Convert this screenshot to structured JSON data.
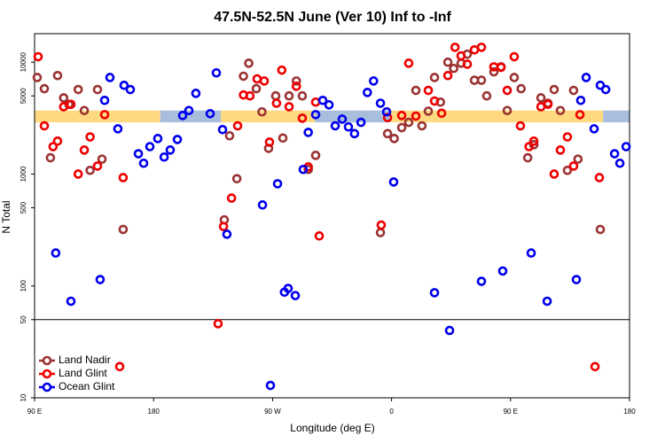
{
  "chart_data": {
    "type": "scatter",
    "title": "47.5N-52.5N June (Ver 10)   Inf to -Inf",
    "xlabel": "Longitude (deg E)",
    "ylabel": "N Total",
    "xlim": [
      90,
      540
    ],
    "ylim": [
      10,
      18000
    ],
    "log_y": true,
    "xticks": [
      {
        "value": 90,
        "label": "90 E"
      },
      {
        "value": 180,
        "label": "180"
      },
      {
        "value": 270,
        "label": "90 W"
      },
      {
        "value": 360,
        "label": "0"
      },
      {
        "value": 450,
        "label": "90 E"
      },
      {
        "value": 540,
        "label": "180"
      }
    ],
    "yticks": [
      10,
      50,
      100,
      500,
      1000,
      5000,
      10000
    ],
    "hline": 50,
    "legend": "lower left",
    "band": {
      "ylim": [
        2900,
        3700
      ],
      "segments": [
        {
          "x": [
            90,
            185
          ],
          "color": "#ffd980"
        },
        {
          "x": [
            185,
            231
          ],
          "color": "#a8bedc"
        },
        {
          "x": [
            231,
            302
          ],
          "color": "#ffd980"
        },
        {
          "x": [
            302,
            359
          ],
          "color": "#a8bedc"
        },
        {
          "x": [
            359,
            520
          ],
          "color": "#ffd980"
        },
        {
          "x": [
            520,
            540
          ],
          "color": "#a8bedc"
        }
      ]
    },
    "series": [
      {
        "name": "Land Nadir",
        "color": "#9b3333",
        "x": [
          92,
          97.4,
          102,
          107.4,
          112,
          116,
          123,
          127.6,
          132,
          137.6,
          141,
          157,
          233.5,
          237.5,
          243,
          248,
          252,
          257.7,
          262,
          267,
          272.4,
          277.8,
          282.5,
          288,
          292.5,
          297,
          302.6,
          351.6,
          357,
          362,
          367.7,
          373,
          378.4,
          383,
          387.8,
          392.5,
          397,
          402.6,
          407,
          412.6,
          417.3,
          422.7,
          428,
          432,
          437.4,
          442.8,
          447.5,
          452.8,
          458,
          463,
          467.6,
          473,
          478.3,
          483,
          487.7,
          493,
          497.7,
          501,
          517.9
        ],
        "values": [
          7300,
          5800,
          1400,
          7600,
          4800,
          4200,
          5700,
          3700,
          1080,
          5700,
          1360,
          320,
          390,
          2200,
          910,
          7500,
          9800,
          5800,
          3600,
          1700,
          5000,
          2100,
          5000,
          6800,
          5000,
          1100,
          1470,
          300,
          2300,
          2080,
          2600,
          2900,
          5600,
          2700,
          3650,
          7300,
          4400,
          10000,
          8800,
          9800,
          11800,
          6900,
          6900,
          5000,
          8200,
          9100,
          3700,
          7300,
          5800,
          1400,
          1830,
          4800,
          4300,
          5700,
          3700,
          1080,
          5600,
          1360,
          320
        ]
      },
      {
        "name": "Land Glint",
        "color": "#ee0000",
        "x": [
          92.7,
          97.4,
          104,
          107.4,
          112,
          117.5,
          123,
          127.6,
          132,
          137.6,
          143,
          157,
          154.4,
          228.8,
          232.9,
          239,
          243.6,
          248,
          252.9,
          258.3,
          263.7,
          267.7,
          273,
          277,
          282.5,
          288,
          292.5,
          297,
          302.6,
          305.3,
          352.2,
          357,
          367.7,
          373,
          378.4,
          387.8,
          392.5,
          397.9,
          402.6,
          408,
          412.6,
          417.3,
          422.7,
          428,
          437.4,
          442.8,
          447.5,
          452.8,
          457.5,
          464,
          467.6,
          473,
          478.3,
          483,
          487.7,
          493,
          497.7,
          502.5,
          517.2,
          513.9
        ],
        "values": [
          11200,
          2700,
          1760,
          1970,
          4000,
          4200,
          1000,
          1640,
          2150,
          1180,
          3400,
          930,
          19,
          46,
          340,
          610,
          2700,
          5100,
          5000,
          7100,
          6800,
          1930,
          4300,
          8500,
          4000,
          6100,
          3160,
          1160,
          4400,
          280,
          350,
          3200,
          3340,
          9800,
          3300,
          5600,
          4500,
          3500,
          7600,
          13600,
          11400,
          9600,
          12900,
          13600,
          9100,
          9000,
          5600,
          11200,
          2700,
          1760,
          1970,
          4000,
          4200,
          1000,
          1640,
          2150,
          1180,
          3400,
          930,
          19
        ]
      },
      {
        "name": "Ocean Glint",
        "color": "#0000ee",
        "x": [
          106,
          117.5,
          139.6,
          143,
          147,
          153,
          157.7,
          162.4,
          168.5,
          172.5,
          177.2,
          183.2,
          188,
          192.6,
          198,
          202,
          206.7,
          212,
          222.8,
          227.5,
          232.2,
          235.5,
          262.4,
          268.4,
          273.8,
          279,
          281.8,
          287.2,
          293.2,
          297,
          302.6,
          308,
          312.7,
          317.4,
          322.7,
          327.4,
          332,
          336.9,
          341.7,
          346.4,
          351.6,
          356.3,
          361.6,
          392.5,
          403.9,
          428,
          444.1,
          465.6,
          477.7,
          499.8,
          503.1,
          507.2,
          513.2,
          517.9,
          522,
          528.7,
          532.7,
          537.4
        ],
        "values": [
          197,
          73,
          114,
          4560,
          7300,
          2540,
          6220,
          5700,
          1520,
          1250,
          1760,
          2080,
          1420,
          1640,
          2040,
          3340,
          3700,
          5270,
          3470,
          8030,
          2500,
          290,
          530,
          12.9,
          820,
          88,
          95,
          82,
          1100,
          2360,
          3400,
          4560,
          4160,
          2700,
          3100,
          2640,
          2300,
          2900,
          5370,
          6800,
          4300,
          3600,
          850,
          87,
          40,
          110,
          136,
          197,
          73,
          114,
          4560,
          7300,
          2540,
          6220,
          5700,
          1520,
          1250,
          1760
        ]
      }
    ]
  }
}
